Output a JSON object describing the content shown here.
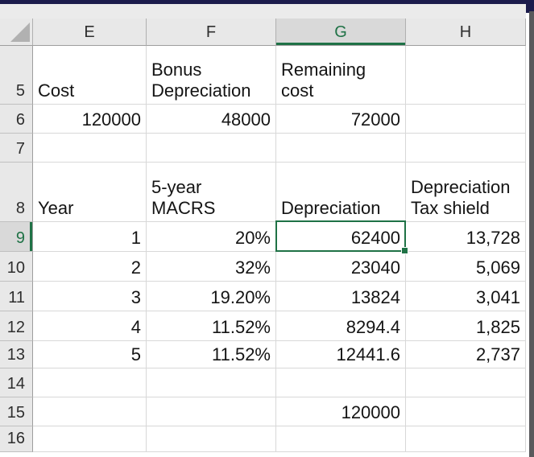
{
  "sheet": {
    "title": "Excel depreciation worksheet",
    "columns": [
      "E",
      "F",
      "G",
      "H"
    ],
    "selection": {
      "cell": "G9",
      "column": "G",
      "row": "9"
    },
    "rows": {
      "r5": {
        "num": "5",
        "E": "Cost",
        "F": "Bonus\nDepreciation",
        "G": "Remaining\ncost",
        "H": ""
      },
      "r6": {
        "num": "6",
        "E": "120000",
        "F": "48000",
        "G": "72000",
        "H": ""
      },
      "r7": {
        "num": "7",
        "E": "",
        "F": "",
        "G": "",
        "H": ""
      },
      "r8": {
        "num": "8",
        "E": "Year",
        "F": "5-year\nMACRS",
        "G": "Depreciation",
        "H": "Depreciation\nTax shield"
      },
      "r9": {
        "num": "9",
        "E": "1",
        "F": "20%",
        "G": "62400",
        "H": "13,728"
      },
      "r10": {
        "num": "10",
        "E": "2",
        "F": "32%",
        "G": "23040",
        "H": "5,069"
      },
      "r11": {
        "num": "11",
        "E": "3",
        "F": "19.20%",
        "G": "13824",
        "H": "3,041"
      },
      "r12": {
        "num": "12",
        "E": "4",
        "F": "11.52%",
        "G": "8294.4",
        "H": "1,825"
      },
      "r13": {
        "num": "13",
        "E": "5",
        "F": "11.52%",
        "G": "12441.6",
        "H": "2,737"
      },
      "r14": {
        "num": "14",
        "E": "",
        "F": "",
        "G": "",
        "H": ""
      },
      "r15": {
        "num": "15",
        "E": "",
        "F": "",
        "G": "120000",
        "H": ""
      },
      "r16": {
        "num": "16",
        "E": "",
        "F": "",
        "G": "",
        "H": ""
      }
    },
    "colors": {
      "accent_green": "#1f7246",
      "frame_navy": "#1b1b4c",
      "header_gray": "#e8e8e8",
      "selected_header_gray": "#d9d9d9"
    }
  }
}
